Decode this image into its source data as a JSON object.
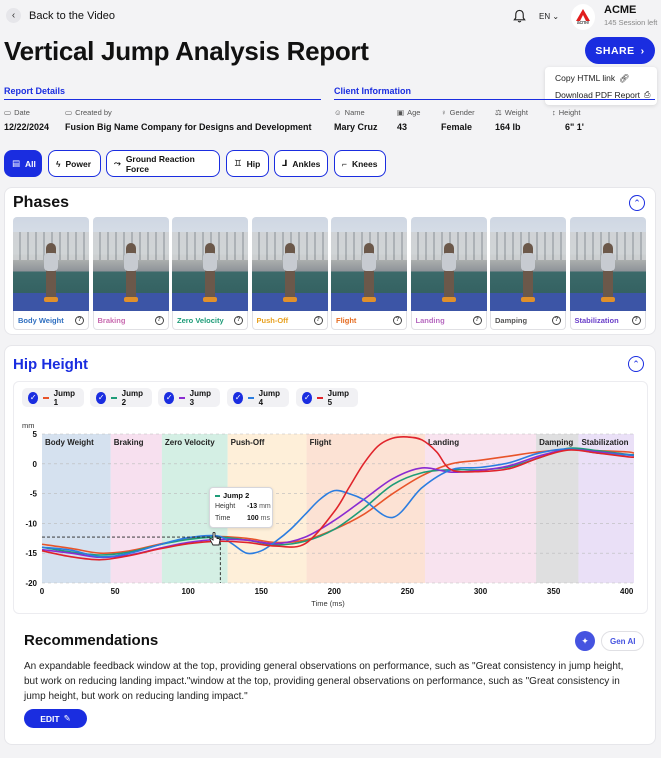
{
  "nav": {
    "back_label": "Back to the Video",
    "language": "EN",
    "brand_name": "ACME",
    "brand_logo_text": "acme",
    "brand_sub": "145 Session left"
  },
  "page": {
    "title": "Vertical Jump Analysis Report"
  },
  "share": {
    "label": "SHARE",
    "menu": [
      "Copy HTML link",
      "Download PDF Report"
    ]
  },
  "report_details": {
    "heading": "Report Details",
    "date_label": "Date",
    "date_value": "12/22/2024",
    "created_label": "Created by",
    "created_value": "Fusion Big Name Company for Designs and Development"
  },
  "client": {
    "heading": "Client Information",
    "name_label": "Name",
    "name_value": "Mary Cruz",
    "age_label": "Age",
    "age_value": "43",
    "gender_label": "Gender",
    "gender_value": "Female",
    "weight_label": "Weight",
    "weight_value": "164 lb",
    "height_label": "Height",
    "height_value": "6\" 1'"
  },
  "filters": [
    "All",
    "Power",
    "Ground Reaction Force",
    "Hip",
    "Ankles",
    "Knees"
  ],
  "phases": {
    "heading": "Phases",
    "items": [
      {
        "label": "Body Weight",
        "color": "#2f6fc0"
      },
      {
        "label": "Braking",
        "color": "#c96bb0"
      },
      {
        "label": "Zero Velocity",
        "color": "#1e9c78"
      },
      {
        "label": "Push-Off",
        "color": "#e8a120"
      },
      {
        "label": "Flight",
        "color": "#e56b1f"
      },
      {
        "label": "Landing",
        "color": "#b76ac0"
      },
      {
        "label": "Damping",
        "color": "#555555"
      },
      {
        "label": "Stabilization",
        "color": "#6a3fc9"
      }
    ]
  },
  "hip": {
    "heading": "Hip Height",
    "jumps": [
      {
        "label": "Jump 1",
        "color": "#e8542a"
      },
      {
        "label": "Jump 2",
        "color": "#1e9c78"
      },
      {
        "label": "Jump 3",
        "color": "#8a2bd1"
      },
      {
        "label": "Jump 4",
        "color": "#2b7de0"
      },
      {
        "label": "Jump 5",
        "color": "#e0242b"
      }
    ],
    "tooltip": {
      "series": "Jump 2",
      "height_label": "Height",
      "height_value": "-13",
      "height_unit": "mm",
      "time_label": "Time",
      "time_value": "100",
      "time_unit": "ms"
    }
  },
  "chart_data": {
    "type": "line",
    "xlabel": "Time (ms)",
    "ylabel": "mm",
    "xlim": [
      0,
      405
    ],
    "ylim": [
      -20,
      5
    ],
    "xticks": [
      0,
      50,
      100,
      150,
      200,
      250,
      300,
      350,
      400
    ],
    "yticks": [
      5,
      0,
      -5,
      -10,
      -15,
      -20
    ],
    "phases": [
      {
        "label": "Body Weight",
        "x0": 0,
        "x1": 47,
        "color": "#c7d7ea"
      },
      {
        "label": "Braking",
        "x0": 47,
        "x1": 82,
        "color": "#f4d6ea"
      },
      {
        "label": "Zero Velocity",
        "x0": 82,
        "x1": 127,
        "color": "#c6e9db"
      },
      {
        "label": "Push-Off",
        "x0": 127,
        "x1": 181,
        "color": "#fde9cc"
      },
      {
        "label": "Flight",
        "x0": 181,
        "x1": 262,
        "color": "#fbd8c6"
      },
      {
        "label": "Landing",
        "x0": 262,
        "x1": 338,
        "color": "#f6d9ea"
      },
      {
        "label": "Damping",
        "x0": 338,
        "x1": 367,
        "color": "#d4d4d6"
      },
      {
        "label": "Stabilization",
        "x0": 367,
        "x1": 405,
        "color": "#e3d6f4"
      }
    ],
    "series": [
      {
        "name": "Jump 1",
        "color": "#e8542a",
        "x": [
          0,
          20,
          40,
          60,
          80,
          100,
          120,
          140,
          160,
          180,
          200,
          220,
          240,
          260,
          280,
          300,
          320,
          340,
          360,
          380,
          400,
          405
        ],
        "y": [
          -13.5,
          -14.2,
          -15,
          -14.6,
          -13.5,
          -12.6,
          -12.2,
          -12.5,
          -13.2,
          -12.8,
          -11,
          -8.5,
          -5,
          -2,
          0,
          0.6,
          1.3,
          2,
          2.4,
          2.2,
          2,
          1.8
        ]
      },
      {
        "name": "Jump 2",
        "color": "#1e9c78",
        "x": [
          0,
          20,
          40,
          60,
          80,
          100,
          120,
          140,
          160,
          180,
          200,
          220,
          240,
          260,
          280,
          300,
          320,
          340,
          360,
          380,
          400,
          405
        ],
        "y": [
          -14,
          -14.8,
          -15.3,
          -14.8,
          -13.6,
          -12.7,
          -12.3,
          -12.8,
          -13.6,
          -13,
          -11,
          -7.5,
          -3.5,
          -1.5,
          -1,
          -1,
          -0.5,
          1,
          2.6,
          2.2,
          1.6,
          1.5
        ]
      },
      {
        "name": "Jump 3",
        "color": "#8a2bd1",
        "x": [
          0,
          20,
          40,
          60,
          80,
          100,
          120,
          140,
          160,
          180,
          200,
          220,
          240,
          260,
          280,
          300,
          320,
          340,
          360,
          380,
          400,
          405
        ],
        "y": [
          -14.4,
          -15,
          -15.7,
          -15.3,
          -14.2,
          -13.2,
          -12.7,
          -12.8,
          -13.4,
          -12.3,
          -9.5,
          -6,
          -2.5,
          -0.7,
          -1.4,
          -1.1,
          -0.3,
          1.3,
          2.4,
          2,
          1.5,
          1.4
        ]
      },
      {
        "name": "Jump 4",
        "color": "#2b7de0",
        "x": [
          0,
          20,
          40,
          60,
          80,
          100,
          120,
          130,
          140,
          150,
          160,
          170,
          180,
          190,
          200,
          210,
          220,
          240,
          260,
          280,
          300,
          320,
          340,
          360,
          380,
          400,
          405
        ],
        "y": [
          -14,
          -14.5,
          -15.6,
          -15,
          -13.6,
          -12.4,
          -12.1,
          -13.4,
          -15,
          -14.6,
          -13,
          -11,
          -8.5,
          -6,
          -4.5,
          -5,
          -6,
          -9,
          -4,
          -1,
          -0.6,
          0.2,
          1.8,
          2.5,
          1.8,
          1.5,
          1.4
        ]
      },
      {
        "name": "Jump 5",
        "color": "#e0242b",
        "x": [
          0,
          20,
          40,
          60,
          80,
          100,
          120,
          140,
          160,
          180,
          200,
          210,
          220,
          230,
          240,
          250,
          260,
          270,
          280,
          300,
          320,
          340,
          360,
          380,
          400,
          405
        ],
        "y": [
          -14.6,
          -15.6,
          -16.1,
          -15.4,
          -14.3,
          -13.4,
          -13,
          -13.2,
          -13.8,
          -13.4,
          -8,
          -4,
          0,
          3,
          4.3,
          4.5,
          4,
          2,
          -1,
          -1.3,
          -0.8,
          1,
          2.3,
          1.8,
          1.2,
          1.1
        ]
      }
    ]
  },
  "recommendations": {
    "heading": "Recommendations",
    "gen_ai_label": "Gen AI",
    "text": "An expandable feedback window at the top, providing general observations on performance, such as \"Great consistency in jump height, but work on reducing landing impact.\"window at the top, providing general observations on performance, such as \"Great consistency in jump height, but work on reducing landing impact.\"",
    "edit_label": "EDIT"
  }
}
